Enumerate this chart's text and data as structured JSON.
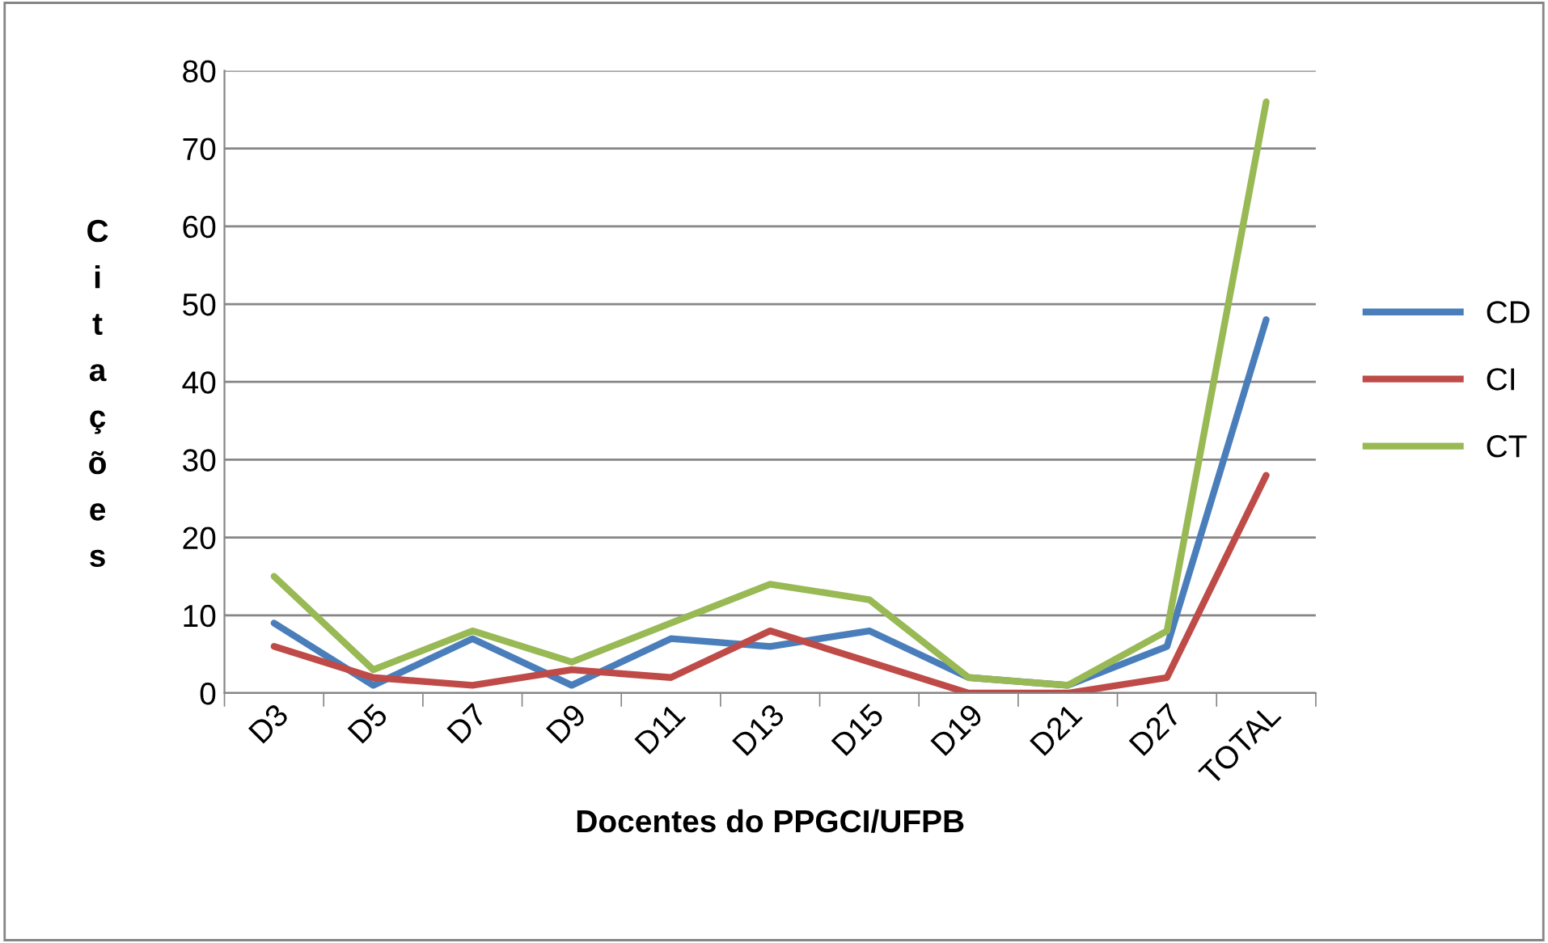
{
  "chart_data": {
    "type": "line",
    "xlabel": "Docentes do PPGCI/UFPB",
    "ylabel": "Citações",
    "categories": [
      "D3",
      "D5",
      "D7",
      "D9",
      "D11",
      "D13",
      "D15",
      "D19",
      "D21",
      "D27",
      "TOTAL"
    ],
    "series": [
      {
        "name": "CD",
        "color": "#4a7ebb",
        "values": [
          9,
          1,
          7,
          1,
          7,
          6,
          8,
          2,
          1,
          6,
          48
        ]
      },
      {
        "name": "CI",
        "color": "#be4b48",
        "values": [
          6,
          2,
          1,
          3,
          2,
          8,
          4,
          0,
          0,
          2,
          28
        ]
      },
      {
        "name": "CT",
        "color": "#98b954",
        "values": [
          15,
          3,
          8,
          4,
          9,
          14,
          12,
          2,
          1,
          8,
          76
        ]
      }
    ],
    "ylim": [
      0,
      80
    ],
    "yticks": [
      0,
      10,
      20,
      30,
      40,
      50,
      60,
      70,
      80
    ],
    "grid": "y",
    "legend": "right",
    "marker": "none",
    "line_style": "solid"
  }
}
